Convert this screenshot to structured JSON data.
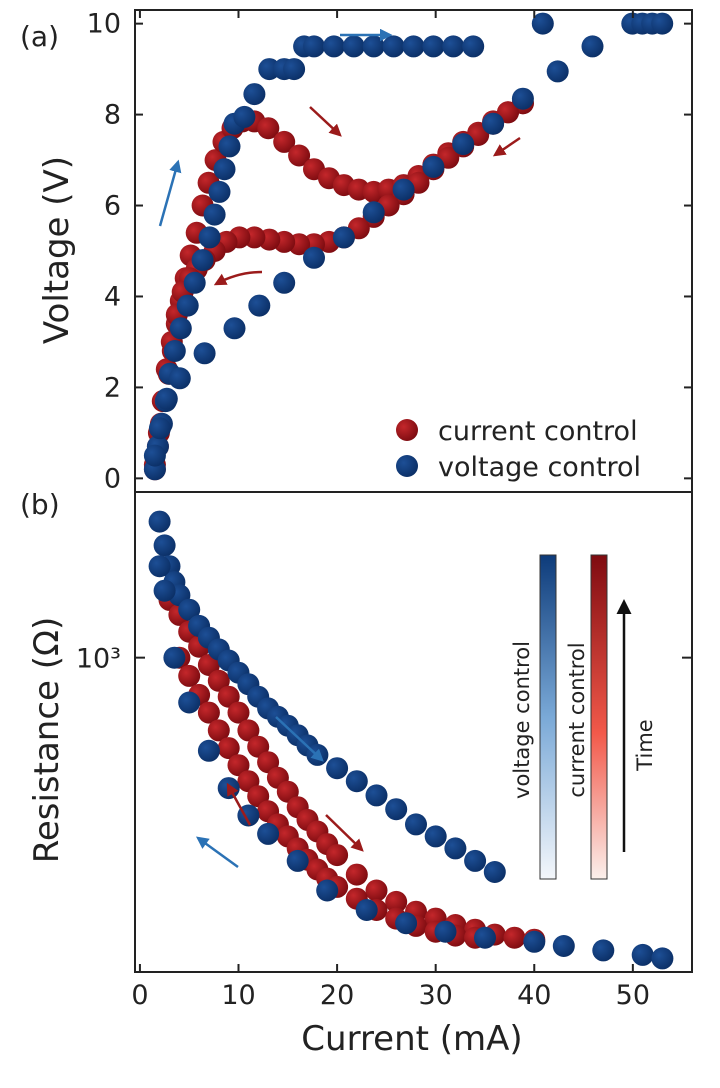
{
  "colors": {
    "current_control": "#8b0e10",
    "voltage_control": "#0f3a78",
    "current_arrow": "#9b1b1b",
    "voltage_arrow": "#2b72b5",
    "axis": "#222222"
  },
  "chart_data": [
    {
      "type": "scatter",
      "panel_label": "(a)",
      "title": "",
      "xlabel": "",
      "ylabel": "Voltage (V)",
      "xlim": [
        0,
        56
      ],
      "ylim": [
        -0.3,
        10.3
      ],
      "yticks": [
        0,
        2,
        4,
        6,
        8,
        10
      ],
      "grid": false,
      "legend_position": "lower-right",
      "series": [
        {
          "name": "current control",
          "color": "#8b0e10",
          "points": [
            [
              2,
              0.2
            ],
            [
              2.3,
              0.7
            ],
            [
              2.6,
              1.2
            ],
            [
              3,
              1.7
            ],
            [
              3.4,
              2.3
            ],
            [
              3.8,
              2.8
            ],
            [
              4.2,
              3.4
            ],
            [
              4.6,
              3.9
            ],
            [
              5.1,
              4.4
            ],
            [
              5.6,
              4.9
            ],
            [
              6.2,
              5.4
            ],
            [
              6.8,
              6.0
            ],
            [
              7.4,
              6.5
            ],
            [
              8.1,
              7.0
            ],
            [
              8.9,
              7.4
            ],
            [
              9.8,
              7.7
            ],
            [
              10.8,
              7.85
            ],
            [
              12,
              7.85
            ],
            [
              13.4,
              7.7
            ],
            [
              15,
              7.4
            ],
            [
              16.5,
              7.1
            ],
            [
              18,
              6.8
            ],
            [
              19.5,
              6.6
            ],
            [
              21,
              6.45
            ],
            [
              22.5,
              6.35
            ],
            [
              24,
              6.3
            ],
            [
              25.5,
              6.35
            ],
            [
              27,
              6.45
            ],
            [
              28.5,
              6.65
            ],
            [
              30,
              6.9
            ],
            [
              31.5,
              7.15
            ],
            [
              33,
              7.4
            ],
            [
              34.5,
              7.6
            ],
            [
              36,
              7.85
            ],
            [
              37.5,
              8.05
            ],
            [
              39,
              8.25
            ],
            [
              39,
              8.25
            ],
            [
              37.5,
              8.05
            ],
            [
              36,
              7.8
            ],
            [
              34.5,
              7.55
            ],
            [
              33,
              7.3
            ],
            [
              31.5,
              7.05
            ],
            [
              30,
              6.8
            ],
            [
              28.5,
              6.5
            ],
            [
              27,
              6.25
            ],
            [
              25.5,
              6.0
            ],
            [
              24,
              5.75
            ],
            [
              22.5,
              5.5
            ],
            [
              21,
              5.3
            ],
            [
              19.5,
              5.2
            ],
            [
              18,
              5.15
            ],
            [
              16.5,
              5.15
            ],
            [
              15,
              5.2
            ],
            [
              13.5,
              5.25
            ],
            [
              12,
              5.3
            ],
            [
              10.5,
              5.3
            ],
            [
              9.2,
              5.2
            ],
            [
              8,
              5.0
            ],
            [
              7,
              4.8
            ],
            [
              6.2,
              4.6
            ],
            [
              5.5,
              4.4
            ],
            [
              4.8,
              4.1
            ],
            [
              4.2,
              3.6
            ],
            [
              3.7,
              3.0
            ],
            [
              3.2,
              2.4
            ],
            [
              2.8,
              1.7
            ],
            [
              2.4,
              1.0
            ],
            [
              2,
              0.3
            ]
          ]
        },
        {
          "name": "voltage control",
          "color": "#0f3a78",
          "points": [
            [
              2,
              0.2
            ],
            [
              2.3,
              0.7
            ],
            [
              2.7,
              1.2
            ],
            [
              3.1,
              1.7
            ],
            [
              3.5,
              2.3
            ],
            [
              4,
              2.8
            ],
            [
              4.6,
              3.3
            ],
            [
              5.3,
              3.8
            ],
            [
              6,
              4.3
            ],
            [
              6.8,
              4.8
            ],
            [
              7.5,
              5.3
            ],
            [
              8,
              5.8
            ],
            [
              8.5,
              6.3
            ],
            [
              9,
              6.8
            ],
            [
              9.5,
              7.3
            ],
            [
              10,
              7.8
            ],
            [
              11,
              7.95
            ],
            [
              12,
              8.45
            ],
            [
              13.5,
              9.0
            ],
            [
              15,
              9.0
            ],
            [
              16,
              9.0
            ],
            [
              17,
              9.5
            ],
            [
              18,
              9.5
            ],
            [
              20,
              9.5
            ],
            [
              22,
              9.5
            ],
            [
              24,
              9.5
            ],
            [
              26,
              9.5
            ],
            [
              28,
              9.5
            ],
            [
              30,
              9.5
            ],
            [
              32,
              9.5
            ],
            [
              34,
              9.5
            ],
            [
              41,
              10.0
            ],
            [
              50,
              10.0
            ],
            [
              51,
              10.0
            ],
            [
              52,
              10.0
            ],
            [
              53,
              10.0
            ],
            [
              46,
              9.5
            ],
            [
              42.5,
              8.95
            ],
            [
              39,
              8.35
            ],
            [
              36,
              7.8
            ],
            [
              33,
              7.35
            ],
            [
              30,
              6.85
            ],
            [
              27,
              6.35
            ],
            [
              24,
              5.85
            ],
            [
              21,
              5.3
            ],
            [
              18,
              4.85
            ],
            [
              15,
              4.3
            ],
            [
              12.5,
              3.8
            ],
            [
              10,
              3.3
            ],
            [
              7,
              2.75
            ],
            [
              4.5,
              2.2
            ],
            [
              3.2,
              1.75
            ],
            [
              2.5,
              1.1
            ],
            [
              2,
              0.5
            ]
          ]
        }
      ]
    },
    {
      "type": "scatter",
      "panel_label": "(b)",
      "title": "",
      "xlabel": "Current (mA)",
      "ylabel": "Resistance (Ω)",
      "xlim": [
        -0.5,
        56
      ],
      "yscale": "log",
      "ylim": [
        110,
        3200
      ],
      "ytick_labels": [
        "10³"
      ],
      "yticks": [
        1000
      ],
      "xticks": [
        0,
        10,
        20,
        30,
        40,
        50
      ],
      "grid": false,
      "colorbars": [
        "voltage control",
        "current control"
      ],
      "colorbar_arrow_label": "Time",
      "series": [
        {
          "name": "current control",
          "color": "#8b0e10",
          "points": [
            [
              3,
              1500
            ],
            [
              4,
              1350
            ],
            [
              5,
              1200
            ],
            [
              6,
              1080
            ],
            [
              7,
              950
            ],
            [
              8,
              850
            ],
            [
              9,
              760
            ],
            [
              10,
              680
            ],
            [
              11,
              600
            ],
            [
              12,
              535
            ],
            [
              13,
              480
            ],
            [
              14,
              430
            ],
            [
              15,
              390
            ],
            [
              16,
              350
            ],
            [
              17,
              320
            ],
            [
              18,
              295
            ],
            [
              19,
              270
            ],
            [
              20,
              250
            ],
            [
              22,
              218
            ],
            [
              24,
              195
            ],
            [
              26,
              180
            ],
            [
              28,
              168
            ],
            [
              30,
              160
            ],
            [
              32,
              153
            ],
            [
              34,
              148
            ],
            [
              36,
              143
            ],
            [
              38,
              140
            ],
            [
              40,
              138
            ],
            [
              4,
              1000
            ],
            [
              5,
              880
            ],
            [
              6,
              770
            ],
            [
              7,
              680
            ],
            [
              8,
              600
            ],
            [
              9,
              530
            ],
            [
              10,
              470
            ],
            [
              11,
              420
            ],
            [
              12,
              378
            ],
            [
              13,
              340
            ],
            [
              14,
              310
            ],
            [
              15,
              285
            ],
            [
              16,
              262
            ],
            [
              17,
              242
            ],
            [
              18,
              226
            ],
            [
              19,
              212
            ],
            [
              20,
              200
            ],
            [
              22,
              184
            ],
            [
              24,
              170
            ],
            [
              26,
              160
            ],
            [
              28,
              152
            ],
            [
              30,
              146
            ],
            [
              32,
              142
            ],
            [
              34,
              140
            ]
          ]
        },
        {
          "name": "voltage control",
          "color": "#0f3a78",
          "points": [
            [
              2,
              2600
            ],
            [
              2.5,
              2200
            ],
            [
              3,
              1900
            ],
            [
              3.5,
              1700
            ],
            [
              4,
              1550
            ],
            [
              5,
              1400
            ],
            [
              6,
              1250
            ],
            [
              7,
              1150
            ],
            [
              8,
              1060
            ],
            [
              9,
              980
            ],
            [
              10,
              900
            ],
            [
              11,
              830
            ],
            [
              12,
              760
            ],
            [
              13,
              700
            ],
            [
              14,
              660
            ],
            [
              15,
              620
            ],
            [
              16,
              580
            ],
            [
              17,
              540
            ],
            [
              18,
              505
            ],
            [
              20,
              460
            ],
            [
              22,
              420
            ],
            [
              24,
              380
            ],
            [
              26,
              345
            ],
            [
              28,
              310
            ],
            [
              30,
              285
            ],
            [
              32,
              262
            ],
            [
              34,
              240
            ],
            [
              36,
              222
            ],
            [
              2,
              1900
            ],
            [
              2.5,
              1600
            ],
            [
              3.5,
              1000
            ],
            [
              5,
              730
            ],
            [
              7,
              520
            ],
            [
              9,
              400
            ],
            [
              11,
              330
            ],
            [
              13,
              290
            ],
            [
              16,
              240
            ],
            [
              19,
              195
            ],
            [
              23,
              170
            ],
            [
              27,
              155
            ],
            [
              31,
              146
            ],
            [
              35,
              140
            ],
            [
              40,
              136
            ],
            [
              43,
              132
            ],
            [
              47,
              128
            ],
            [
              51,
              124
            ],
            [
              53,
              121
            ]
          ]
        }
      ]
    }
  ],
  "legend": {
    "current_label": "current control",
    "voltage_label": "voltage control"
  }
}
